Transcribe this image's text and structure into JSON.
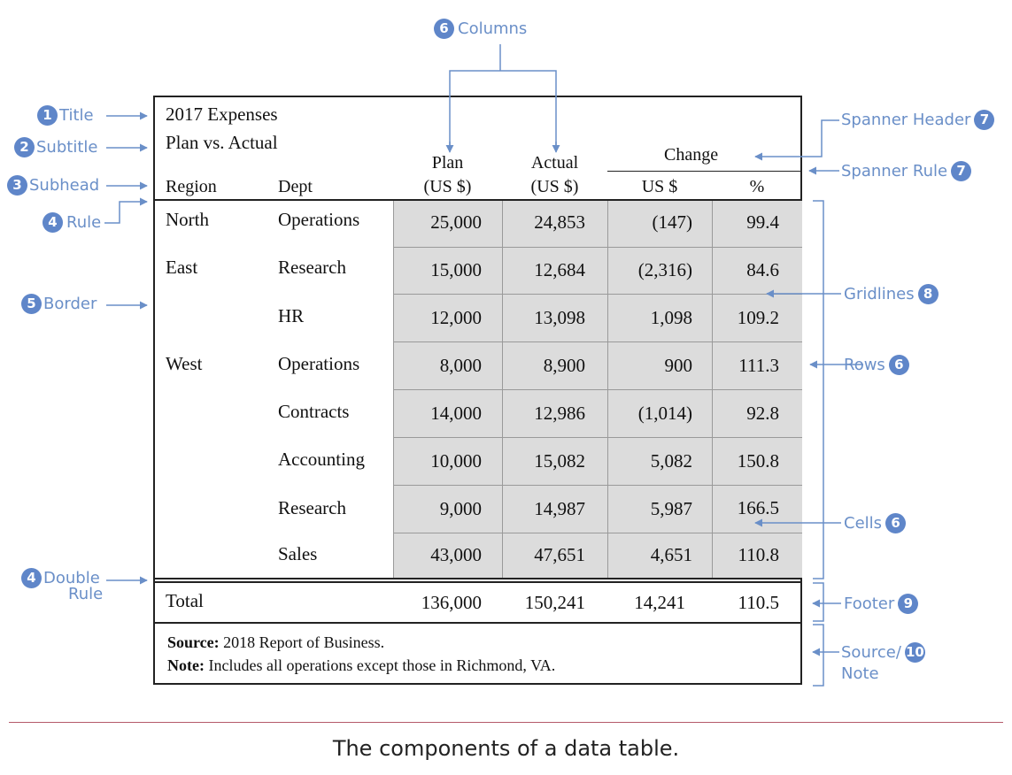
{
  "table": {
    "title": "2017 Expenses",
    "subtitle": "Plan vs. Actual",
    "headers": {
      "region": "Region",
      "dept": "Dept",
      "plan_line1": "Plan",
      "plan_line2": "(US $)",
      "actual_line1": "Actual",
      "actual_line2": "(US $)",
      "spanner": "Change",
      "change_usd": "US $",
      "change_pct": "%"
    },
    "rows": [
      {
        "region": "North",
        "dept": "Operations",
        "plan": "25,000",
        "actual": "24,853",
        "usd": "(147)",
        "pct": "99.4"
      },
      {
        "region": "East",
        "dept": "Research",
        "plan": "15,000",
        "actual": "12,684",
        "usd": "(2,316)",
        "pct": "84.6"
      },
      {
        "region": "",
        "dept": "HR",
        "plan": "12,000",
        "actual": "13,098",
        "usd": "1,098",
        "pct": "109.2"
      },
      {
        "region": "West",
        "dept": "Operations",
        "plan": "8,000",
        "actual": "8,900",
        "usd": "900",
        "pct": "111.3"
      },
      {
        "region": "",
        "dept": "Contracts",
        "plan": "14,000",
        "actual": "12,986",
        "usd": "(1,014)",
        "pct": "92.8"
      },
      {
        "region": "",
        "dept": "Accounting",
        "plan": "10,000",
        "actual": "15,082",
        "usd": "5,082",
        "pct": "150.8"
      },
      {
        "region": "",
        "dept": "Research",
        "plan": "9,000",
        "actual": "14,987",
        "usd": "5,987",
        "pct": "166.5"
      },
      {
        "region": "",
        "dept": "Sales",
        "plan": "43,000",
        "actual": "47,651",
        "usd": "4,651",
        "pct": "110.8"
      }
    ],
    "footer": {
      "label": "Total",
      "plan": "136,000",
      "actual": "150,241",
      "usd": "14,241",
      "pct": "110.5"
    },
    "source_label": "Source:",
    "source_text": " 2018 Report of Business.",
    "note_label": "Note:",
    "note_text": " Includes all operations except those in Richmond, VA."
  },
  "annotations": {
    "title": {
      "num": "1",
      "text": "Title"
    },
    "subtitle": {
      "num": "2",
      "text": "Subtitle"
    },
    "subhead": {
      "num": "3",
      "text": "Subhead"
    },
    "rule": {
      "num": "4",
      "text": "Rule"
    },
    "border": {
      "num": "5",
      "text": "Border"
    },
    "double_rule": {
      "num": "4",
      "text1": "Double",
      "text2": "Rule"
    },
    "columns": {
      "num": "6",
      "text": "Columns"
    },
    "spanner_header": {
      "num": "7",
      "text": "Spanner Header"
    },
    "spanner_rule": {
      "num": "7",
      "text": "Spanner Rule"
    },
    "gridlines": {
      "num": "8",
      "text": "Gridlines"
    },
    "rows": {
      "num": "6",
      "text": "Rows"
    },
    "cells": {
      "num": "6",
      "text": "Cells"
    },
    "footer": {
      "num": "9",
      "text": "Footer"
    },
    "source_note": {
      "num": "10",
      "text1": "Source/",
      "text2": "Note"
    }
  },
  "colors": {
    "annotation": "#6a8fc8",
    "badge": "#5f86c9",
    "cell_shade": "#dcdcdc",
    "caption_rule": "#b45a6a"
  },
  "caption": "The components of a data table."
}
